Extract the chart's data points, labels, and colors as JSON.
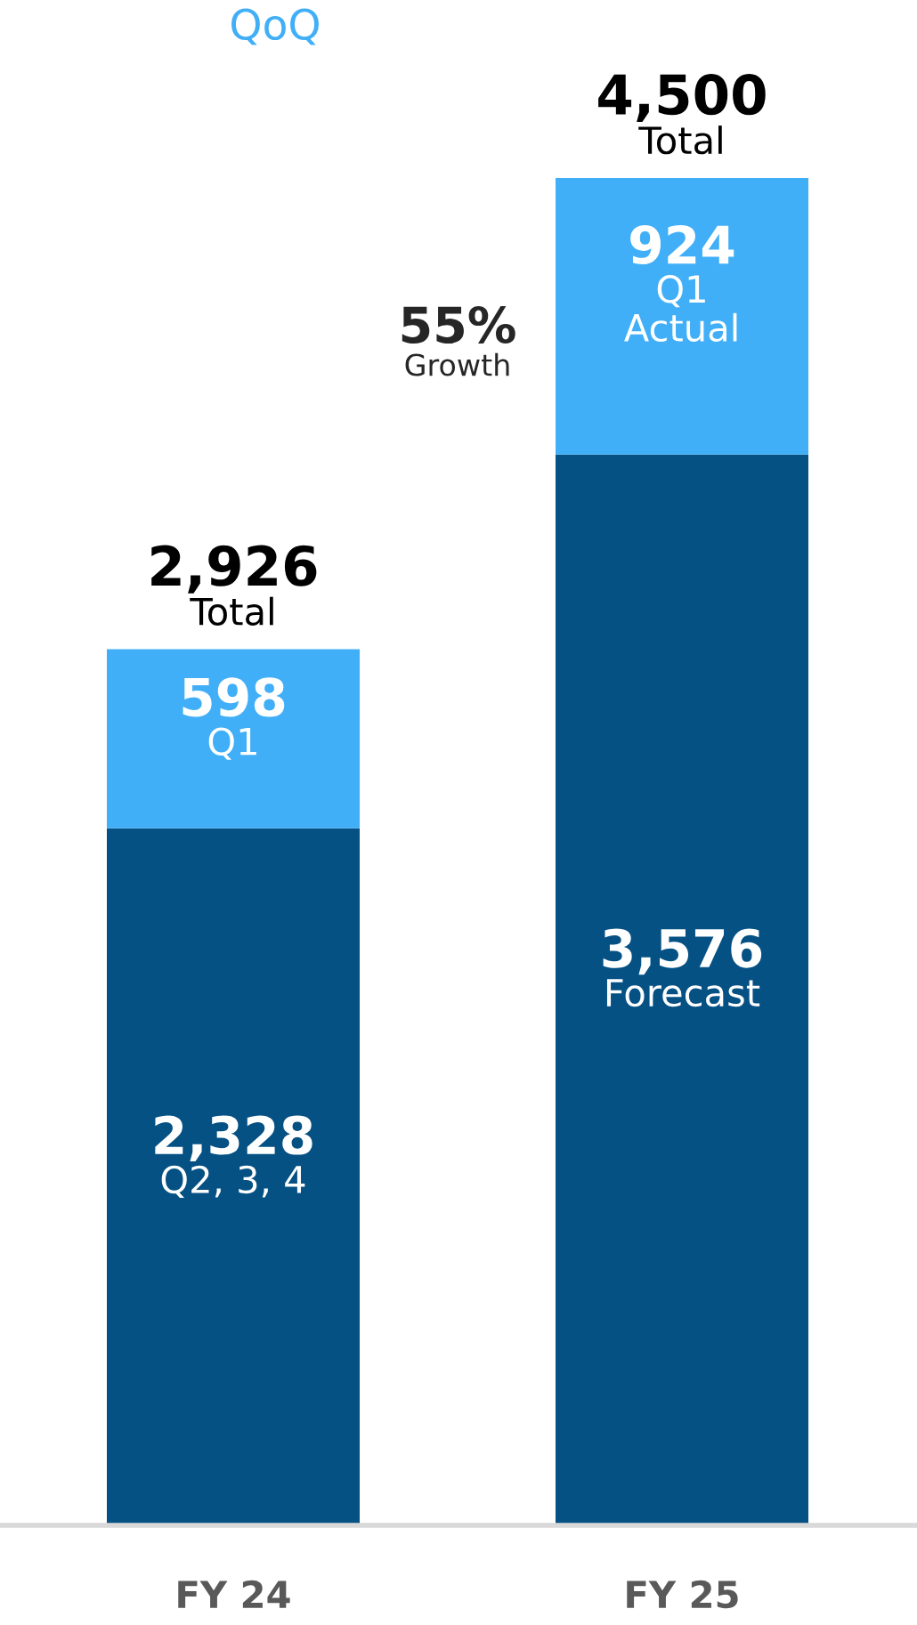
{
  "chart_data": {
    "type": "bar",
    "stacked": true,
    "categories": [
      "FY 24",
      "FY 25"
    ],
    "series": [
      {
        "color": "#065184",
        "values": [
          2328,
          3576
        ],
        "value_labels": [
          "2,328\nQ2, 3, 4",
          "3,576\nForecast"
        ]
      },
      {
        "color": "#41aff7",
        "values": [
          598,
          924
        ],
        "value_labels": [
          "598\nQ1",
          "924\nQ1\nActual"
        ]
      }
    ],
    "totals": [
      "2,926\nTotal",
      "4,500\nTotal"
    ],
    "annotations": [
      "QoQ",
      "55%\nGrowth"
    ]
  }
}
